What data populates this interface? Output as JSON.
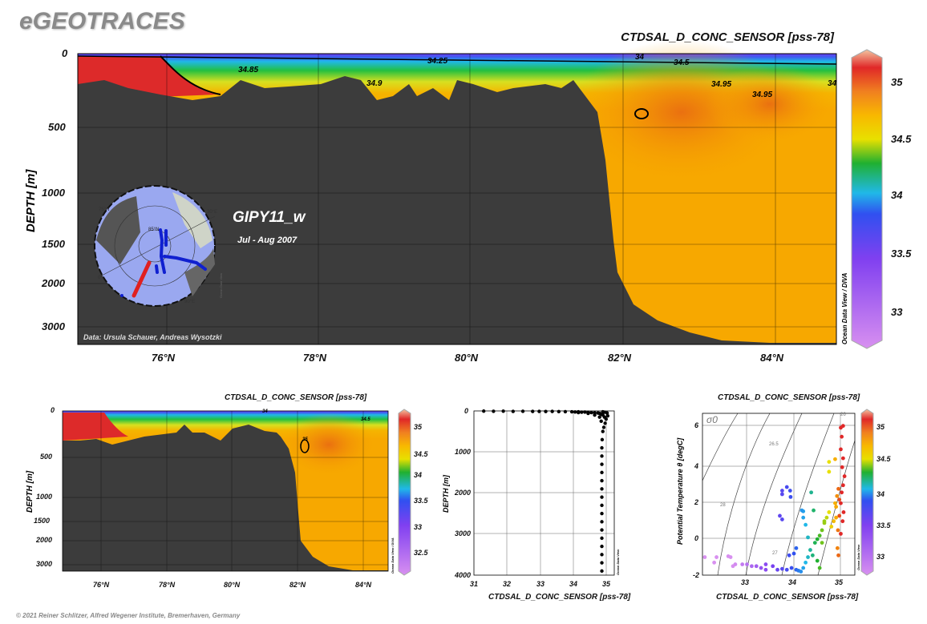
{
  "brand": "eGEOTRACES",
  "footer": "© 2021 Reiner Schlitzer, Alfred Wegener Institute, Bremerhaven, Germany",
  "main_section": {
    "title": "CTDSAL_D_CONC_SENSOR [pss-78]",
    "ylabel": "DEPTH [m]",
    "cruise": "GIPY11_w",
    "period": "Jul - Aug 2007",
    "credit": "Data: Ursula Schauer, Andreas Wysotzki",
    "watermark": "Ocean Data View / DIVA",
    "yticks": [
      "0",
      "500",
      "1000",
      "1500",
      "2000",
      "3000"
    ],
    "xticks": [
      "76°N",
      "78°N",
      "80°N",
      "82°N",
      "84°N"
    ],
    "colorbar_ticks": [
      "35",
      "34.5",
      "34",
      "33.5",
      "33"
    ],
    "contour_labels": [
      "34.85",
      "34.9",
      "34.25",
      "34.5",
      "34.95",
      "34.95",
      "34",
      "34"
    ]
  },
  "map_inset": {
    "labels": [
      "75°N",
      "85°N",
      "30°E",
      "0°",
      "90°E"
    ],
    "watermark": "Ocean Data View",
    "colors": {
      "section": "#e02020",
      "stations": "#1020d0"
    }
  },
  "small_section": {
    "title": "CTDSAL_D_CONC_SENSOR [pss-78]",
    "ylabel": "DEPTH [m]",
    "watermark": "Ocean Data View / DIVA",
    "yticks": [
      "0",
      "500",
      "1000",
      "1500",
      "2000",
      "3000"
    ],
    "xticks": [
      "76°N",
      "78°N",
      "80°N",
      "82°N",
      "84°N"
    ],
    "colorbar_ticks": [
      "35",
      "34.5",
      "34",
      "33.5",
      "33",
      "32.5"
    ],
    "contour_labels": [
      "34",
      "34.5",
      "35"
    ]
  },
  "chart_data": [
    {
      "type": "heatmap",
      "title": "CTDSAL_D_CONC_SENSOR [pss-78]",
      "ylabel": "DEPTH [m]",
      "x_range": [
        "74.8°N",
        "84.8°N"
      ],
      "y_range": [
        0,
        3300
      ],
      "colorbar_range": [
        32.7,
        35.2
      ]
    },
    {
      "type": "scatter",
      "name": "profile",
      "xlabel": "CTDSAL_D_CONC_SENSOR [pss-78]",
      "ylabel": "DEPTH [m]",
      "watermark": "Ocean Data View",
      "xlim": [
        31,
        35.3
      ],
      "ylim": [
        0,
        4000
      ],
      "xticks": [
        "31",
        "32",
        "33",
        "34",
        "35"
      ],
      "yticks": [
        "0",
        "1000",
        "2000",
        "3000",
        "4000"
      ],
      "points": [
        [
          31.3,
          5
        ],
        [
          31.6,
          8
        ],
        [
          31.9,
          6
        ],
        [
          32.2,
          10
        ],
        [
          32.5,
          8
        ],
        [
          32.8,
          12
        ],
        [
          33.0,
          10
        ],
        [
          33.2,
          14
        ],
        [
          33.4,
          12
        ],
        [
          33.6,
          16
        ],
        [
          33.8,
          18
        ],
        [
          34.0,
          20
        ],
        [
          34.1,
          25
        ],
        [
          34.2,
          22
        ],
        [
          34.3,
          30
        ],
        [
          34.4,
          28
        ],
        [
          34.5,
          35
        ],
        [
          34.6,
          40
        ],
        [
          34.7,
          45
        ],
        [
          34.8,
          50
        ],
        [
          34.85,
          60
        ],
        [
          34.9,
          80
        ],
        [
          34.95,
          100
        ],
        [
          35.0,
          150
        ],
        [
          35.05,
          200
        ],
        [
          35.02,
          300
        ],
        [
          34.98,
          400
        ],
        [
          34.95,
          500
        ],
        [
          34.93,
          700
        ],
        [
          34.92,
          900
        ],
        [
          34.92,
          1100
        ],
        [
          34.92,
          1300
        ],
        [
          34.92,
          1500
        ],
        [
          34.92,
          1700
        ],
        [
          34.92,
          1900
        ],
        [
          34.92,
          2100
        ],
        [
          34.92,
          2300
        ],
        [
          34.92,
          2500
        ],
        [
          34.92,
          2700
        ],
        [
          34.92,
          2900
        ],
        [
          34.92,
          3100
        ],
        [
          34.92,
          3300
        ],
        [
          34.92,
          3500
        ],
        [
          34.92,
          3700
        ],
        [
          34.92,
          3900
        ],
        [
          34.5,
          60
        ],
        [
          34.2,
          40
        ],
        [
          34.7,
          100
        ],
        [
          34.85,
          150
        ],
        [
          35.08,
          50
        ],
        [
          35.1,
          120
        ],
        [
          34.9,
          250
        ],
        [
          35.0,
          30
        ],
        [
          34.95,
          20
        ]
      ]
    },
    {
      "type": "scatter",
      "name": "ts",
      "title": "CTDSAL_D_CONC_SENSOR [pss-78]",
      "xlabel": "CTDSAL_D_CONC_SENSOR [pss-78]",
      "ylabel": "Potential Temperature θ [degC]",
      "sigma_label": "σ0",
      "isopycnal_labels": [
        "26",
        "26.5",
        "27",
        "28"
      ],
      "watermark": "Ocean Data View",
      "xlim": [
        32.05,
        35.3
      ],
      "ylim": [
        -2,
        7
      ],
      "xticks": [
        "33",
        "34",
        "35"
      ],
      "yticks": [
        "-2",
        "0",
        "2",
        "4",
        "6"
      ],
      "colorbar_ticks": [
        "35",
        "34.5",
        "34",
        "33.5",
        "33"
      ],
      "points": [
        [
          32.1,
          -1.0
        ],
        [
          32.3,
          -1.3
        ],
        [
          32.35,
          -1.0
        ],
        [
          32.6,
          -0.95
        ],
        [
          32.65,
          -1.0
        ],
        [
          32.7,
          -1.5
        ],
        [
          32.75,
          -1.4
        ],
        [
          32.9,
          -1.4
        ],
        [
          33.0,
          -1.4
        ],
        [
          33.1,
          -1.5
        ],
        [
          33.2,
          -1.5
        ],
        [
          33.3,
          -1.6
        ],
        [
          33.4,
          -1.4
        ],
        [
          33.4,
          -1.7
        ],
        [
          33.55,
          -1.5
        ],
        [
          33.65,
          -1.7
        ],
        [
          33.75,
          -1.65
        ],
        [
          33.85,
          -1.7
        ],
        [
          33.95,
          -1.6
        ],
        [
          34.05,
          -1.7
        ],
        [
          34.1,
          -1.75
        ],
        [
          34.15,
          -1.8
        ],
        [
          34.2,
          -1.6
        ],
        [
          34.25,
          -1.3
        ],
        [
          34.3,
          -1.0
        ],
        [
          34.35,
          -0.6
        ],
        [
          34.3,
          0.1
        ],
        [
          34.25,
          0.8
        ],
        [
          34.4,
          -0.9
        ],
        [
          34.45,
          -0.2
        ],
        [
          34.5,
          0.0
        ],
        [
          34.55,
          -1.6
        ],
        [
          34.5,
          -1.2
        ],
        [
          34.6,
          0.5
        ],
        [
          34.65,
          0.9
        ],
        [
          34.7,
          1.2
        ],
        [
          34.75,
          1.5
        ],
        [
          34.8,
          0.7
        ],
        [
          34.85,
          1.0
        ],
        [
          34.9,
          1.8
        ],
        [
          34.92,
          2.4
        ],
        [
          34.95,
          2.8
        ],
        [
          34.93,
          -0.5
        ],
        [
          34.95,
          -0.9
        ],
        [
          34.94,
          0.5
        ],
        [
          34.97,
          1.3
        ],
        [
          35.0,
          2.0
        ],
        [
          35.02,
          2.6
        ],
        [
          35.05,
          3.0
        ],
        [
          35.08,
          3.5
        ],
        [
          35.03,
          4.0
        ],
        [
          35.05,
          4.5
        ],
        [
          35.0,
          5.0
        ],
        [
          35.02,
          5.7
        ],
        [
          35.05,
          6.3
        ],
        [
          35.0,
          6.2
        ],
        [
          35.0,
          0.3
        ],
        [
          34.75,
          3.75
        ],
        [
          34.75,
          4.3
        ],
        [
          34.88,
          4.45
        ],
        [
          33.75,
          2.7
        ],
        [
          33.75,
          2.5
        ],
        [
          33.85,
          2.9
        ],
        [
          33.92,
          2.7
        ],
        [
          33.93,
          2.35
        ],
        [
          33.7,
          1.3
        ],
        [
          33.75,
          1.1
        ],
        [
          34.2,
          1.55
        ],
        [
          34.17,
          1.6
        ],
        [
          34.2,
          1.2
        ],
        [
          34.37,
          2.6
        ],
        [
          34.42,
          1.6
        ],
        [
          33.9,
          -0.9
        ],
        [
          34.0,
          -0.8
        ],
        [
          34.05,
          -0.5
        ],
        [
          34.55,
          0.2
        ],
        [
          34.6,
          -0.2
        ],
        [
          34.65,
          1.0
        ],
        [
          34.88,
          2.0
        ],
        [
          34.9,
          1.2
        ],
        [
          34.97,
          2.2
        ],
        [
          35.06,
          1.5
        ],
        [
          35.04,
          1.0
        ]
      ]
    }
  ]
}
